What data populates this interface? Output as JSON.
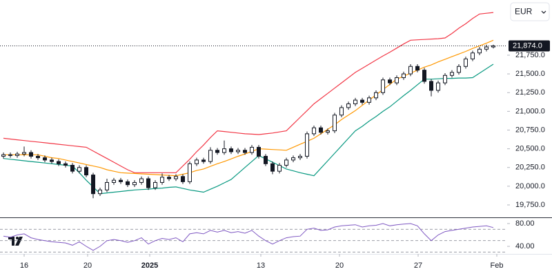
{
  "toolbar": {
    "currency": "EUR"
  },
  "chart_data": [
    {
      "type": "candlestick",
      "open": [
        20400,
        20420,
        20410,
        20430,
        20450,
        20400,
        20380,
        20350,
        20330,
        20300,
        20280,
        20200,
        20250,
        20150,
        19900,
        19950,
        20050,
        20080,
        20060,
        20020,
        20050,
        20100,
        19980,
        20050,
        20120,
        20100,
        20130,
        20060,
        20300,
        20350,
        20330,
        20480,
        20450,
        20500,
        20460,
        20480,
        20450,
        20520,
        20400,
        20300,
        20200,
        20280,
        20350,
        20380,
        20400,
        20700,
        20780,
        20720,
        20740,
        20950,
        21050,
        21100,
        21150,
        21120,
        21180,
        21250,
        21420,
        21380,
        21450,
        21500,
        21600,
        21550,
        21400,
        21280,
        21380,
        21480,
        21520,
        21600,
        21700,
        21780,
        21830,
        21860
      ],
      "high": [
        20450,
        20450,
        20460,
        20530,
        20480,
        20430,
        20410,
        20380,
        20360,
        20330,
        20310,
        20280,
        20280,
        20180,
        19980,
        20100,
        20110,
        20110,
        20090,
        20080,
        20130,
        20130,
        20080,
        20170,
        20150,
        20160,
        20160,
        20330,
        20380,
        20380,
        20520,
        20510,
        20610,
        20530,
        20510,
        20510,
        20550,
        20550,
        20430,
        20330,
        20310,
        20380,
        20410,
        20430,
        20730,
        20810,
        20810,
        20770,
        20980,
        21080,
        21130,
        21180,
        21180,
        21210,
        21280,
        21450,
        21450,
        21480,
        21530,
        21630,
        21630,
        21580,
        21430,
        21410,
        21510,
        21550,
        21630,
        21730,
        21810,
        21860,
        21890,
        21890
      ],
      "low": [
        20370,
        20380,
        20380,
        20400,
        20370,
        20350,
        20320,
        20300,
        20270,
        20250,
        20170,
        20170,
        20120,
        19840,
        19870,
        19920,
        20020,
        20030,
        19990,
        19990,
        20020,
        19950,
        19950,
        20020,
        20070,
        20070,
        20030,
        20030,
        20270,
        20300,
        20300,
        20420,
        20420,
        20430,
        20430,
        20420,
        20420,
        20370,
        20270,
        20160,
        20170,
        20250,
        20320,
        20350,
        20370,
        20670,
        20690,
        20690,
        20710,
        20920,
        21020,
        21070,
        21090,
        21090,
        21150,
        21220,
        21350,
        21350,
        21420,
        21470,
        21520,
        21370,
        21200,
        21250,
        21350,
        21450,
        21490,
        21570,
        21670,
        21750,
        21800,
        21840
      ],
      "close": [
        20420,
        20410,
        20430,
        20450,
        20400,
        20380,
        20350,
        20330,
        20300,
        20280,
        20200,
        20250,
        20150,
        19900,
        19950,
        20050,
        20080,
        20060,
        20020,
        20050,
        20100,
        19980,
        20050,
        20120,
        20100,
        20130,
        20060,
        20300,
        20350,
        20330,
        20480,
        20450,
        20500,
        20460,
        20480,
        20450,
        20520,
        20400,
        20300,
        20200,
        20280,
        20350,
        20380,
        20400,
        20700,
        20780,
        20720,
        20740,
        20950,
        21050,
        21100,
        21150,
        21120,
        21180,
        21250,
        21420,
        21380,
        21450,
        21500,
        21600,
        21550,
        21400,
        21280,
        21380,
        21480,
        21520,
        21600,
        21700,
        21780,
        21830,
        21860,
        21874
      ],
      "last_value_label": "21,874.0",
      "bands": [
        {
          "color": "#f23645",
          "values": [
            20640,
            20630,
            20620,
            20610,
            20600,
            20590,
            20580,
            20570,
            20560,
            20550,
            20540,
            20530,
            20520,
            20470,
            20420,
            20370,
            20320,
            20270,
            20220,
            20180,
            20180,
            20180,
            20180,
            20180,
            20180,
            20180,
            20270,
            20360,
            20460,
            20550,
            20650,
            20740,
            20730,
            20720,
            20710,
            20700,
            20695,
            20690,
            20700,
            20710,
            20725,
            20740,
            20830,
            20920,
            21010,
            21100,
            21170,
            21240,
            21310,
            21380,
            21450,
            21520,
            21575,
            21630,
            21685,
            21740,
            21790,
            21845,
            21900,
            21950,
            21955,
            21960,
            21965,
            21970,
            21980,
            22040,
            22110,
            22170,
            22240,
            22300,
            22310,
            22320
          ]
        },
        {
          "color": "#ff9800",
          "values": [
            20420,
            20420,
            20420,
            20420,
            20420,
            20420,
            20400,
            20380,
            20370,
            20350,
            20330,
            20310,
            20290,
            20270,
            20250,
            20220,
            20200,
            20180,
            20175,
            20170,
            20165,
            20160,
            20155,
            20150,
            20145,
            20140,
            20160,
            20180,
            20210,
            20230,
            20265,
            20300,
            20330,
            20365,
            20400,
            20430,
            20465,
            20500,
            20495,
            20490,
            20485,
            20480,
            20520,
            20560,
            20600,
            20640,
            20700,
            20760,
            20820,
            20890,
            20950,
            21010,
            21080,
            21150,
            21220,
            21290,
            21360,
            21430,
            21470,
            21510,
            21550,
            21590,
            21620,
            21660,
            21695,
            21730,
            21765,
            21800,
            21840,
            21875,
            21910,
            21950
          ]
        },
        {
          "color": "#089981",
          "values": [
            20370,
            20360,
            20350,
            20340,
            20330,
            20320,
            20310,
            20300,
            20290,
            20280,
            20270,
            20180,
            20080,
            19990,
            19900,
            19910,
            19920,
            19930,
            19940,
            19950,
            19955,
            19960,
            19970,
            19975,
            19985,
            19990,
            19970,
            19950,
            19935,
            19920,
            19960,
            20000,
            20045,
            20090,
            20170,
            20250,
            20330,
            20410,
            20365,
            20320,
            20275,
            20230,
            20205,
            20180,
            20160,
            20140,
            20240,
            20340,
            20440,
            20540,
            20640,
            20740,
            20800,
            20870,
            20930,
            21000,
            21060,
            21135,
            21210,
            21280,
            21355,
            21430,
            21430,
            21435,
            21440,
            21440,
            21445,
            21445,
            21450,
            21510,
            21570,
            21630
          ]
        }
      ],
      "up_color": "#ffffff",
      "down_color": "#131722",
      "xlim": [
        -0.5,
        73
      ],
      "xticks": [
        {
          "value": 3,
          "label": "16"
        },
        {
          "value": 12.2,
          "label": "20"
        },
        {
          "value": 21.2,
          "label": "2025"
        },
        {
          "value": 37.3,
          "label": "13"
        },
        {
          "value": 48.7,
          "label": "20"
        },
        {
          "value": 60.1,
          "label": "27"
        },
        {
          "value": 71.5,
          "label": "Feb"
        }
      ],
      "ylim": [
        19584,
        22487
      ],
      "yticks": [
        {
          "value": 19750,
          "label": "19,750.0"
        },
        {
          "value": 20000,
          "label": "20,000.0"
        },
        {
          "value": 20250,
          "label": "20,250.0"
        },
        {
          "value": 20500,
          "label": "20,500.0"
        },
        {
          "value": 20750,
          "label": "20,750.0"
        },
        {
          "value": 21000,
          "label": "21,000.0"
        },
        {
          "value": 21250,
          "label": "21,250.0"
        },
        {
          "value": 21500,
          "label": "21,500.0"
        },
        {
          "value": 21750,
          "label": "21,750.0"
        }
      ]
    },
    {
      "type": "line",
      "color": "#7e57c2",
      "values": [
        58,
        56,
        60,
        62,
        55,
        52,
        50,
        48,
        47,
        46,
        42,
        48,
        40,
        33,
        40,
        50,
        52,
        50,
        47,
        50,
        55,
        44,
        50,
        54,
        52,
        55,
        48,
        62,
        64,
        62,
        68,
        65,
        68,
        64,
        66,
        63,
        68,
        58,
        50,
        44,
        50,
        55,
        57,
        58,
        70,
        72,
        68,
        69,
        74,
        76,
        77,
        78,
        74,
        76,
        77,
        80,
        76,
        78,
        79,
        80,
        76,
        62,
        50,
        60,
        66,
        68,
        70,
        72,
        74,
        75,
        76,
        73
      ],
      "levels": [
        70,
        50,
        30
      ],
      "ylim": [
        26.7,
        89.7
      ],
      "yticks": [
        {
          "value": 80,
          "label": "80.00"
        },
        {
          "value": 40,
          "label": "40.00"
        }
      ]
    }
  ]
}
